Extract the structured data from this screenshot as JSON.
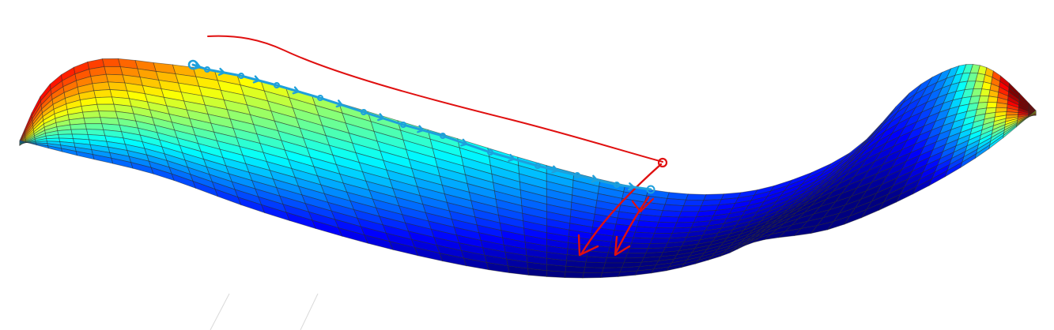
{
  "figure": {
    "description_kind": "3d-surface-with-annotations",
    "surface": {
      "colormap": "jet",
      "grid_lines": true,
      "mesh_u": 60,
      "mesh_v": 16
    },
    "annotations": {
      "trajectory": {
        "color": "#1ea0dc",
        "waypoints": 12,
        "arrow_direction": "right"
      },
      "outline_curve": {
        "color": "#e01010"
      },
      "gradient_arrows": {
        "color": "#e01010",
        "count": 2,
        "direction": "down"
      }
    }
  }
}
